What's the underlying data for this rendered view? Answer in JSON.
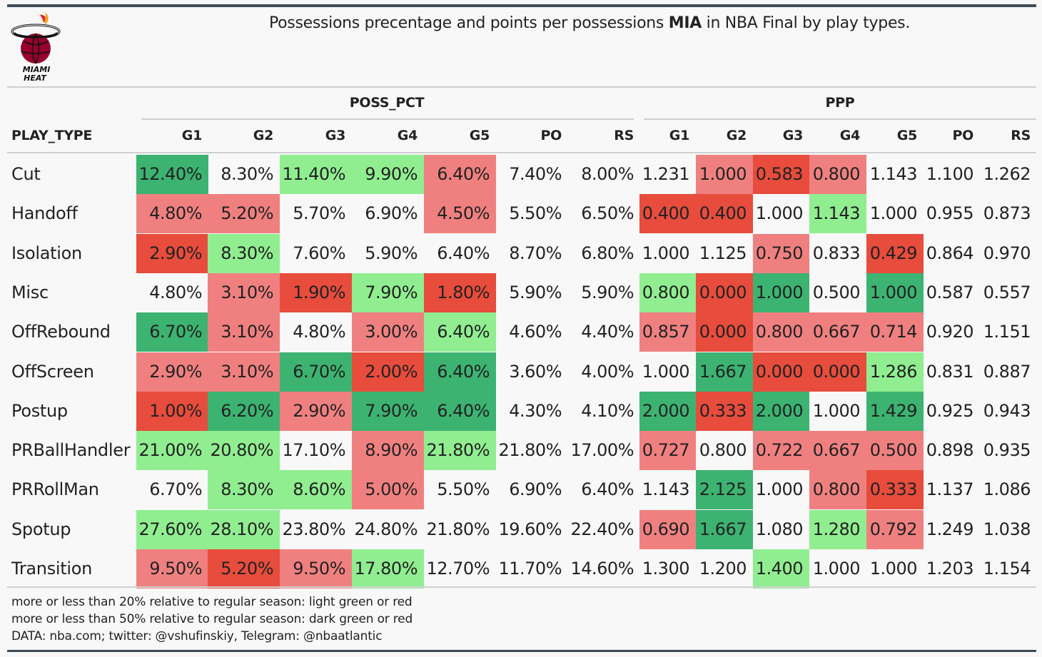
{
  "header": {
    "title_prefix": "Possessions precentage and points per possessions ",
    "title_bold": "MIA",
    "title_suffix": " in NBA Final by play types.",
    "logo_line1": "MIAMI",
    "logo_line2": "HEAT"
  },
  "colors": {
    "dark_green": "#3cb371",
    "light_green": "#90ee90",
    "light_red": "#f08080",
    "dark_red": "#e74c3c",
    "none": "transparent"
  },
  "chart_data": {
    "type": "table",
    "row_header": "PLAY_TYPE",
    "groups": [
      "POSS_PCT",
      "PPP"
    ],
    "columns": [
      "G1",
      "G2",
      "G3",
      "G4",
      "G5",
      "PO",
      "RS"
    ],
    "rows": [
      {
        "name": "Cut",
        "poss": [
          "12.40%",
          "8.30%",
          "11.40%",
          "9.90%",
          "6.40%",
          "7.40%",
          "8.00%"
        ],
        "poss_c": [
          "dg",
          "n",
          "lg",
          "lg",
          "lr",
          "n",
          "n"
        ],
        "ppp": [
          "1.231",
          "1.000",
          "0.583",
          "0.800",
          "1.143",
          "1.100",
          "1.262"
        ],
        "ppp_c": [
          "n",
          "lr",
          "dr",
          "lr",
          "n",
          "n",
          "n"
        ]
      },
      {
        "name": "Handoff",
        "poss": [
          "4.80%",
          "5.20%",
          "5.70%",
          "6.90%",
          "4.50%",
          "5.50%",
          "6.50%"
        ],
        "poss_c": [
          "lr",
          "lr",
          "n",
          "n",
          "lr",
          "n",
          "n"
        ],
        "ppp": [
          "0.400",
          "0.400",
          "1.000",
          "1.143",
          "1.000",
          "0.955",
          "0.873"
        ],
        "ppp_c": [
          "dr",
          "dr",
          "n",
          "lg",
          "n",
          "n",
          "n"
        ]
      },
      {
        "name": "Isolation",
        "poss": [
          "2.90%",
          "8.30%",
          "7.60%",
          "5.90%",
          "6.40%",
          "8.70%",
          "6.80%"
        ],
        "poss_c": [
          "dr",
          "lg",
          "n",
          "n",
          "n",
          "n",
          "n"
        ],
        "ppp": [
          "1.000",
          "1.125",
          "0.750",
          "0.833",
          "0.429",
          "0.864",
          "0.970"
        ],
        "ppp_c": [
          "n",
          "n",
          "lr",
          "n",
          "dr",
          "n",
          "n"
        ]
      },
      {
        "name": "Misc",
        "poss": [
          "4.80%",
          "3.10%",
          "1.90%",
          "7.90%",
          "1.80%",
          "5.90%",
          "5.90%"
        ],
        "poss_c": [
          "n",
          "lr",
          "dr",
          "lg",
          "dr",
          "n",
          "n"
        ],
        "ppp": [
          "0.800",
          "0.000",
          "1.000",
          "0.500",
          "1.000",
          "0.587",
          "0.557"
        ],
        "ppp_c": [
          "lg",
          "dr",
          "dg",
          "n",
          "dg",
          "n",
          "n"
        ]
      },
      {
        "name": "OffRebound",
        "poss": [
          "6.70%",
          "3.10%",
          "4.80%",
          "3.00%",
          "6.40%",
          "4.60%",
          "4.40%"
        ],
        "poss_c": [
          "dg",
          "lr",
          "n",
          "lr",
          "lg",
          "n",
          "n"
        ],
        "ppp": [
          "0.857",
          "0.000",
          "0.800",
          "0.667",
          "0.714",
          "0.920",
          "1.151"
        ],
        "ppp_c": [
          "lr",
          "dr",
          "lr",
          "lr",
          "lr",
          "n",
          "n"
        ]
      },
      {
        "name": "OffScreen",
        "poss": [
          "2.90%",
          "3.10%",
          "6.70%",
          "2.00%",
          "6.40%",
          "3.60%",
          "4.00%"
        ],
        "poss_c": [
          "lr",
          "lr",
          "dg",
          "dr",
          "dg",
          "n",
          "n"
        ],
        "ppp": [
          "1.000",
          "1.667",
          "0.000",
          "0.000",
          "1.286",
          "0.831",
          "0.887"
        ],
        "ppp_c": [
          "n",
          "dg",
          "dr",
          "dr",
          "lg",
          "n",
          "n"
        ]
      },
      {
        "name": "Postup",
        "poss": [
          "1.00%",
          "6.20%",
          "2.90%",
          "7.90%",
          "6.40%",
          "4.30%",
          "4.10%"
        ],
        "poss_c": [
          "dr",
          "dg",
          "lr",
          "dg",
          "dg",
          "n",
          "n"
        ],
        "ppp": [
          "2.000",
          "0.333",
          "2.000",
          "1.000",
          "1.429",
          "0.925",
          "0.943"
        ],
        "ppp_c": [
          "dg",
          "dr",
          "dg",
          "n",
          "dg",
          "n",
          "n"
        ]
      },
      {
        "name": "PRBallHandler",
        "poss": [
          "21.00%",
          "20.80%",
          "17.10%",
          "8.90%",
          "21.80%",
          "21.80%",
          "17.00%"
        ],
        "poss_c": [
          "lg",
          "lg",
          "n",
          "lr",
          "lg",
          "n",
          "n"
        ],
        "ppp": [
          "0.727",
          "0.800",
          "0.722",
          "0.667",
          "0.500",
          "0.898",
          "0.935"
        ],
        "ppp_c": [
          "lr",
          "n",
          "lr",
          "lr",
          "lr",
          "n",
          "n"
        ]
      },
      {
        "name": "PRRollMan",
        "poss": [
          "6.70%",
          "8.30%",
          "8.60%",
          "5.00%",
          "5.50%",
          "6.90%",
          "6.40%"
        ],
        "poss_c": [
          "n",
          "lg",
          "lg",
          "lr",
          "n",
          "n",
          "n"
        ],
        "ppp": [
          "1.143",
          "2.125",
          "1.000",
          "0.800",
          "0.333",
          "1.137",
          "1.086"
        ],
        "ppp_c": [
          "n",
          "dg",
          "n",
          "lr",
          "dr",
          "n",
          "n"
        ]
      },
      {
        "name": "Spotup",
        "poss": [
          "27.60%",
          "28.10%",
          "23.80%",
          "24.80%",
          "21.80%",
          "19.60%",
          "22.40%"
        ],
        "poss_c": [
          "lg",
          "lg",
          "n",
          "n",
          "n",
          "n",
          "n"
        ],
        "ppp": [
          "0.690",
          "1.667",
          "1.080",
          "1.280",
          "0.792",
          "1.249",
          "1.038"
        ],
        "ppp_c": [
          "lr",
          "dg",
          "n",
          "lg",
          "lr",
          "n",
          "n"
        ]
      },
      {
        "name": "Transition",
        "poss": [
          "9.50%",
          "5.20%",
          "9.50%",
          "17.80%",
          "12.70%",
          "11.70%",
          "14.60%"
        ],
        "poss_c": [
          "lr",
          "dr",
          "lr",
          "lg",
          "n",
          "n",
          "n"
        ],
        "ppp": [
          "1.300",
          "1.200",
          "1.400",
          "1.000",
          "1.000",
          "1.203",
          "1.154"
        ],
        "ppp_c": [
          "n",
          "n",
          "lg",
          "n",
          "n",
          "n",
          "n"
        ]
      }
    ]
  },
  "footnotes": [
    "more or less than 20% relative to regular season: light green or red",
    "more or less than 50% relative to regular season: dark green or red",
    "DATA: nba.com; twitter: @vshufinskiy, Telegram: @nbaatlantic"
  ]
}
